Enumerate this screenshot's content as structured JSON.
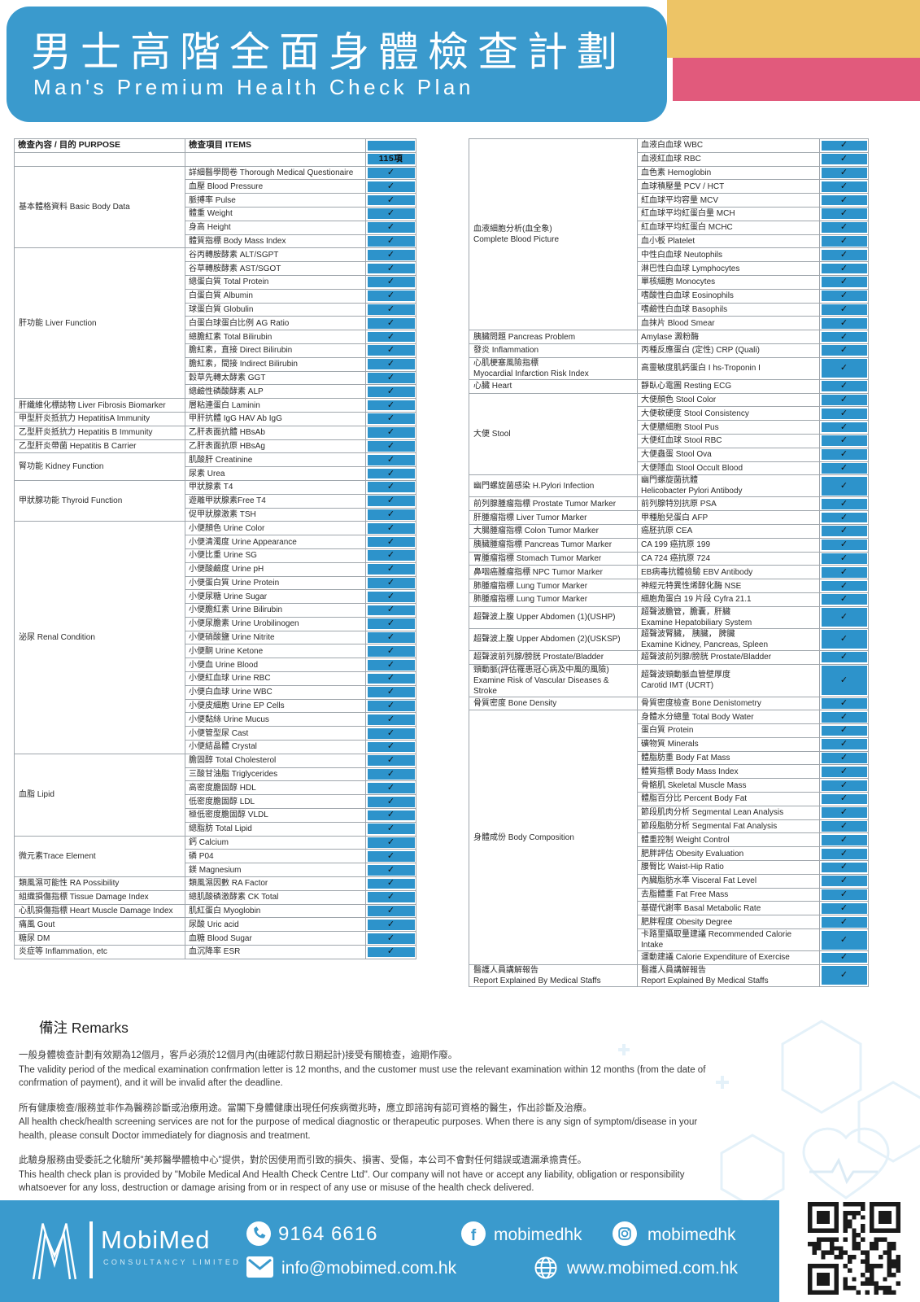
{
  "header": {
    "title_zh": "男士高階全面身體檢查計劃",
    "title_en": "Man's Premium Health Check Plan"
  },
  "colors": {
    "brand_blue": "#3A9ACD",
    "check_cell_blue": "#2D93CB",
    "accent_yellow": "#EDC466",
    "accent_pink": "#E15A7C"
  },
  "table": {
    "purpose_header": "檢查內容 / 目的 PURPOSE",
    "items_header": "檢查項目 ITEMS",
    "count_badge": "115項",
    "check_mark": "✓",
    "left_groups": [
      {
        "purpose": "基本體格資料 Basic Body Data",
        "items": [
          "詳細醫學問卷 Thorough Medical Questionaire",
          "血壓 Blood Pressure",
          "脈搏率 Pulse",
          "體重 Weight",
          "身高 Height",
          "體質指標 Body Mass Index"
        ]
      },
      {
        "purpose": "肝功能 Liver Function",
        "items": [
          "谷丙轉胺酵素 ALT/SGPT",
          "谷草轉胺酵素 AST/SGOT",
          "總蛋白質 Total Protein",
          "白蛋白質 Albumin",
          "球蛋白質 Globulin",
          "白蛋白球蛋白比例 AG Ratio",
          "總膽紅素 Total Bilirubin",
          "膽紅素，直接 Direct Bilirubin",
          "膽紅素，間接 Indirect Bilirubin",
          "穀草先轉太酵素 GGT",
          "總鹼性磷酸酵素 ALP"
        ]
      },
      {
        "purpose": "肝纖維化標誌物 Liver Fibrosis Biomarker",
        "items": [
          "層粘連蛋白 Laminin"
        ]
      },
      {
        "purpose": "甲型肝炎抵抗力 HepatitisA Immunity",
        "items": [
          "甲肝抗體 IgG HAV Ab IgG"
        ]
      },
      {
        "purpose": "乙型肝炎抵抗力 Hepatitis B Immunity",
        "items": [
          "乙肝表面抗體 HBsAb"
        ]
      },
      {
        "purpose": "乙型肝炎帶菌 Hepatitis B Carrier",
        "items": [
          "乙肝表面抗原 HBsAg"
        ]
      },
      {
        "purpose": "腎功能 Kidney Function",
        "items": [
          "肌酸肝 Creatinine",
          "尿素 Urea"
        ]
      },
      {
        "purpose": "甲狀腺功能 Thyroid Function",
        "items": [
          "甲狀腺素 T4",
          "遊離甲狀腺素Free T4",
          "促甲狀腺激素 TSH"
        ]
      },
      {
        "purpose": "泌尿 Renal Condition",
        "items": [
          "小便顏色 Urine Color",
          "小便清濁度 Urine Appearance",
          "小便比重 Urine SG",
          "小便酸鹼度 Urine pH",
          "小便蛋白質 Urine Protein",
          "小便尿糖 Urine Sugar",
          "小便膽紅素 Urine Bilirubin",
          "小便尿膽素 Urine Urobilinogen",
          "小便硝酸鹽 Urine Nitrite",
          "小便酮 Urine Ketone",
          "小便血 Urine Blood",
          "小便紅血球 Urine RBC",
          "小便白血球 Urine WBC",
          "小便皮細胞 Urine EP Cells",
          "小便黏絲 Urine Mucus",
          "小便管型尿 Cast",
          "小便結晶體 Crystal"
        ]
      },
      {
        "purpose": "血脂 Lipid",
        "items": [
          "膽固醇 Total Cholesterol",
          "三酸甘油脂 Triglycerides",
          "高密度膽固醇 HDL",
          "低密度膽固醇 LDL",
          "極低密度膽固醇 VLDL",
          "總脂肪 Total Lipid"
        ]
      },
      {
        "purpose": "微元素Trace Element",
        "items": [
          "鈣 Calcium",
          "磷 P04",
          "鎂 Magnesium"
        ]
      },
      {
        "purpose": "類風濕可能性 RA Possibility",
        "items": [
          "類風濕因數 RA Factor"
        ]
      },
      {
        "purpose": "組織損傷指標 Tissue Damage Index",
        "items": [
          "總肌酸磷激酵素 CK Total"
        ]
      },
      {
        "purpose": "心肌損傷指標 Heart Muscle Damage Index",
        "items": [
          "肌紅蛋白 Myoglobin"
        ]
      },
      {
        "purpose": "痛風 Gout",
        "items": [
          "尿酸 Uric acid"
        ]
      },
      {
        "purpose": "糖尿 DM",
        "items": [
          "血糖 Blood Sugar"
        ]
      },
      {
        "purpose": "炎症等 Inflammation, etc",
        "items": [
          "血沉降率 ESR"
        ]
      }
    ],
    "right_groups": [
      {
        "purpose": "血液細胞分析(血全象)\nComplete Blood Picture",
        "items": [
          "血液白血球 WBC",
          "血液紅血球 RBC",
          "血色素 Hemoglobin",
          "血球積壓量 PCV / HCT",
          "紅血球平均容量 MCV",
          "紅血球平均紅蛋白量 MCH",
          "紅血球平均紅蛋白 MCHC",
          "血小板 Platelet",
          "中性白血球 Neutophils",
          "淋巴性白血球 Lymphocytes",
          "單核細胞 Monocytes",
          "嗜酸性白血球 Eosinophils",
          "嗜鹼性白血球 Basophils",
          "血抹片 Blood Smear"
        ]
      },
      {
        "purpose": "胰臟問題 Pancreas Problem",
        "items": [
          "Amylase 澱粉酶"
        ]
      },
      {
        "purpose": "發炎 Inflammation",
        "items": [
          "丙種反應蛋白 (定性) CRP (Quali)"
        ]
      },
      {
        "purpose": "心肌梗塞風險指標\nMyocardial Infarction Risk Index",
        "items": [
          "高靈敏度肌鈣蛋白 I hs-Troponin I"
        ]
      },
      {
        "purpose": "心臟 Heart",
        "items": [
          "靜臥心電圖 Resting ECG"
        ]
      },
      {
        "purpose": "大便 Stool",
        "items": [
          "大便顏色 Stool Color",
          "大便軟硬度 Stool Consistency",
          "大便膿細胞 Stool Pus",
          "大便紅血球 Stool RBC",
          "大便蟲蛋 Stool Ova",
          "大便隱血 Stool Occult Blood"
        ]
      },
      {
        "purpose": "幽門螺旋菌感染 H.Pylori Infection",
        "items": [
          "幽門螺旋菌抗體\nHelicobacter Pylori Antibody"
        ]
      },
      {
        "purpose": "前列腺腫瘤指標 Prostate Tumor Marker",
        "items": [
          "前列腺特別抗原 PSA"
        ]
      },
      {
        "purpose": "肝腫瘤指標 Liver Tumor Marker",
        "items": [
          "甲種胎兒蛋白 AFP"
        ]
      },
      {
        "purpose": "大腸腫瘤指標 Colon Tumor Marker",
        "items": [
          "癌胚抗原 CEA"
        ]
      },
      {
        "purpose": "胰臟腫瘤指標 Pancreas Tumor Marker",
        "items": [
          "CA 199 癌抗原 199"
        ]
      },
      {
        "purpose": "胃腫瘤指標 Stomach Tumor Marker",
        "items": [
          "CA 724 癌抗原 724"
        ]
      },
      {
        "purpose": "鼻咽癌腫瘤指標 NPC Tumor Marker",
        "items": [
          "EB病毒抗體檢驗 EBV Antibody"
        ]
      },
      {
        "purpose": "肺腫瘤指標 Lung Tumor Marker",
        "items": [
          "神經元特異性烯醇化酶 NSE"
        ]
      },
      {
        "purpose": "肺腫瘤指標 Lung Tumor Marker",
        "items": [
          "細胞角蛋白 19 片段 Cyfra 21.1"
        ]
      },
      {
        "purpose": "超聲波上腹 Upper Abdomen (1)(USHP)",
        "items": [
          "超聲波膽管，膽囊，肝臟\nExamine Hepatobiliary System"
        ]
      },
      {
        "purpose": "超聲波上腹 Upper Abdomen (2)(USKSP)",
        "items": [
          "超聲波腎臟， 胰臟， 脾臟\nExamine Kidney, Pancreas, Spleen"
        ]
      },
      {
        "purpose": "超聲波前列腺/膀胱 Prostate/Bladder",
        "items": [
          "超聲波前列腺/膀胱 Prostate/Bladder"
        ]
      },
      {
        "purpose": "頸動脈(評估罹患冠心病及中風的風險)\nExamine Risk of Vascular Diseases & Stroke",
        "items": [
          "超聲波頸動脈血管壁厚度\nCarotid IMT (UCRT)"
        ]
      },
      {
        "purpose": "骨質密度 Bone Density",
        "items": [
          "骨質密度檢查 Bone Denistometry"
        ]
      },
      {
        "purpose": "身體成份 Body Composition",
        "items": [
          "身體水分總量 Total Body Water",
          "蛋白質 Protein",
          "礦物質 Minerals",
          "體脂肪重 Body Fat Mass",
          "體質指標 Body Mass Index",
          "骨骼肌 Skeletal Muscle Mass",
          "體脂百分比 Percent Body Fat",
          "節段肌肉分析 Segmental Lean Analysis",
          "節段脂肪分析 Segmental Fat Analysis",
          "體重控制 Weight Control",
          "肥胖評估 Obesity Evaluation",
          "腰臀比 Waist-Hip Ratio",
          "內臟脂肪水準 Visceral Fat Level",
          "去脂體重 Fat Free Mass",
          "基礎代謝率 Basal Metabolic Rate",
          "肥胖程度 Obesity Degree",
          "卡路里攝取量建議 Recommended Calorie Intake",
          "運動建議 Calorie Expenditure of Exercise"
        ]
      },
      {
        "purpose": "醫護人員講解報告\nReport Explained By Medical Staffs",
        "items": [
          "醫護人員講解報告\nReport Explained By Medical Staffs"
        ]
      }
    ]
  },
  "remarks": {
    "heading": "備注 Remarks",
    "paragraphs": [
      {
        "zh": "一般身體檢查計劃有效期為12個月，客戶必須於12個月內(由確認付款日期起計)接受有關檢查，逾期作廢。",
        "en": "The validity period of the medical examination confrmation letter is 12 months, and the customer must use the relevant examination within 12 months (from the date of confrmation of payment), and it will be invalid after the deadline."
      },
      {
        "zh": "所有健康檢查/服務並非作為醫務診斷或治療用途。當閣下身體健康出現任何疾病徵兆時，應立即諮詢有認可資格的醫生，作出診斷及治療。",
        "en": "All health check/health screening services are not for the purpose of medical diagnostic or therapeutic purposes. When there is any sign of symptom/disease in your health, please consult Doctor immediately for diagnosis and treatment."
      },
      {
        "zh": "此驗身服務由受委託之化驗所\"美邦醫學體檢中心\"提供，對於因使用而引致的損失、損害、受傷，本公司不會對任何錯誤或遺漏承擔責任。",
        "en": "This health check plan is provided by \"Mobile Medical And Health Check Centre Ltd\". Our company will not have or accept any liability, obligation or responsibility whatsoever for any loss, destruction or damage arising from or in respect of any use or misuse of the health check delivered."
      }
    ]
  },
  "footer": {
    "brand": "MobiMed",
    "brand_sub": "CONSULTANCY LIMITED",
    "phone": "9164 6616",
    "facebook": "mobimedhk",
    "instagram": "mobimedhk",
    "email": "info@mobimed.com.hk",
    "website": "www.mobimed.com.hk"
  }
}
